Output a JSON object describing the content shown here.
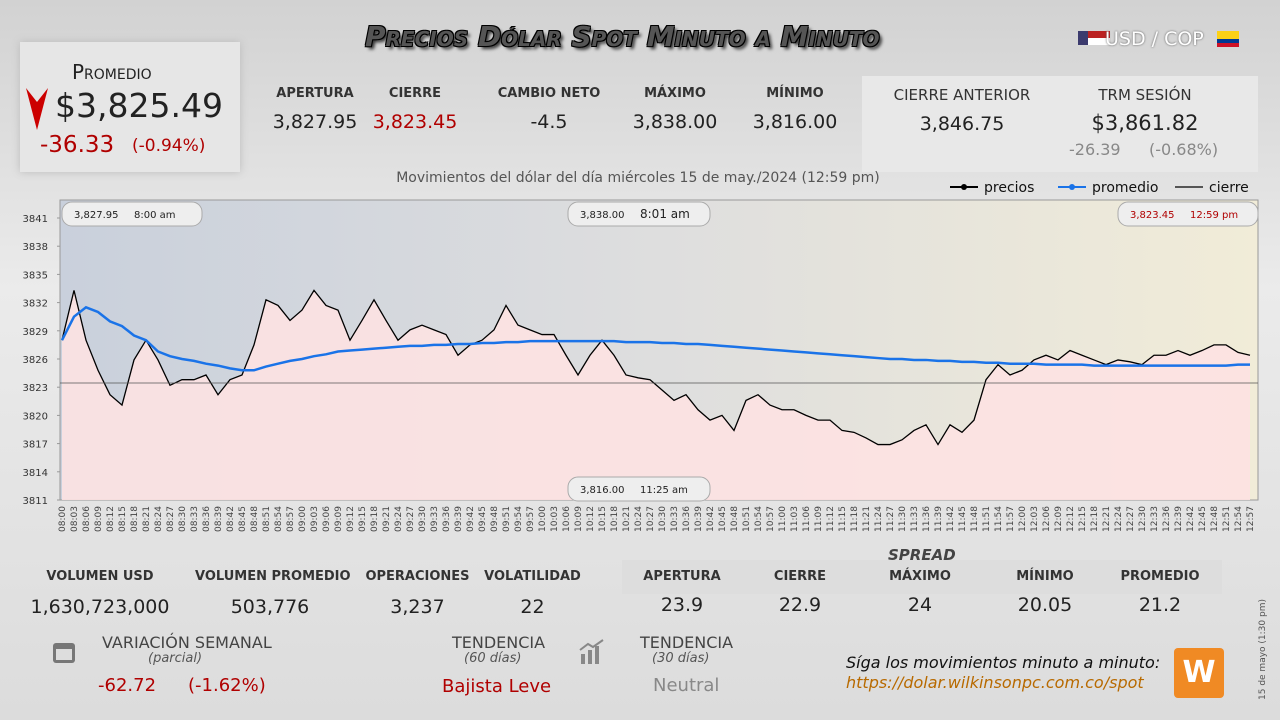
{
  "header": {
    "title": "Precios Dólar Spot Minuto a Minuto",
    "pair": "USD / COP"
  },
  "promedio": {
    "label": "Promedio",
    "value": "$3,825.49",
    "change": "-36.33",
    "change_pct": "(-0.94%)"
  },
  "stats": [
    {
      "label": "APERTURA",
      "value": "3,827.95"
    },
    {
      "label": "CIERRE",
      "value": "3,823.45"
    },
    {
      "label": "CAMBIO NETO",
      "value": "-4.5"
    },
    {
      "label": "MÁXIMO",
      "value": "3,838.00"
    },
    {
      "label": "MÍNIMO",
      "value": "3,816.00"
    }
  ],
  "previous": {
    "cierre_anterior": {
      "label": "CIERRE ANTERIOR",
      "value": "3,846.75"
    },
    "trm": {
      "label": "TRM SESIÓN",
      "value": "$3,861.82",
      "change": "-26.39",
      "change_pct": "(-0.68%)"
    }
  },
  "chart_data": {
    "type": "line",
    "subtitle": "Movimientos del dólar del día miércoles 15 de may./2024 (12:59 pm)",
    "categories": [
      "08:00",
      "08:03",
      "08:06",
      "08:09",
      "08:12",
      "08:15",
      "08:18",
      "08:21",
      "08:24",
      "08:27",
      "08:30",
      "08:33",
      "08:36",
      "08:39",
      "08:42",
      "08:45",
      "08:48",
      "08:51",
      "08:54",
      "08:57",
      "09:00",
      "09:03",
      "09:06",
      "09:09",
      "09:12",
      "09:15",
      "09:18",
      "09:21",
      "09:24",
      "09:27",
      "09:30",
      "09:33",
      "09:36",
      "09:39",
      "09:42",
      "09:45",
      "09:48",
      "09:51",
      "09:54",
      "09:57",
      "10:00",
      "10:03",
      "10:06",
      "10:09",
      "10:12",
      "10:15",
      "10:18",
      "10:21",
      "10:24",
      "10:27",
      "10:30",
      "10:33",
      "10:36",
      "10:39",
      "10:42",
      "10:45",
      "10:48",
      "10:51",
      "10:54",
      "10:57",
      "11:00",
      "11:03",
      "11:06",
      "11:09",
      "11:12",
      "11:15",
      "11:18",
      "11:21",
      "11:24",
      "11:27",
      "11:30",
      "11:33",
      "11:36",
      "11:39",
      "11:42",
      "11:45",
      "11:48",
      "11:51",
      "11:54",
      "11:57",
      "12:00",
      "12:03",
      "12:06",
      "12:09",
      "12:12",
      "12:15",
      "12:18",
      "12:21",
      "12:24",
      "12:27",
      "12:30",
      "12:33",
      "12:36",
      "12:39",
      "12:42",
      "12:45",
      "12:48",
      "12:51",
      "12:54",
      "12:57"
    ],
    "series": [
      {
        "name": "precios",
        "color": "#000000",
        "fill": "#fde2e2",
        "values": [
          3828,
          3833.3,
          3828,
          3824.8,
          3822.2,
          3821.1,
          3825.9,
          3828,
          3825.9,
          3823.2,
          3823.8,
          3823.8,
          3824.3,
          3822.2,
          3823.8,
          3824.3,
          3827.5,
          3832.3,
          3831.7,
          3830.1,
          3831.2,
          3833.3,
          3831.7,
          3831.2,
          3828,
          3830.1,
          3832.3,
          3830.1,
          3828,
          3829.1,
          3829.6,
          3829.1,
          3828.6,
          3826.4,
          3827.5,
          3828,
          3829.1,
          3831.7,
          3829.6,
          3829.1,
          3828.6,
          3828.6,
          3826.4,
          3824.3,
          3826.4,
          3828,
          3826.4,
          3824.3,
          3824,
          3823.8,
          3822.7,
          3821.6,
          3822.2,
          3820.6,
          3819.5,
          3820,
          3818.4,
          3821.6,
          3822.2,
          3821.1,
          3820.6,
          3820.6,
          3820,
          3819.5,
          3819.5,
          3818.4,
          3818.2,
          3817.6,
          3816.9,
          3816.9,
          3817.4,
          3818.4,
          3819,
          3816.9,
          3819,
          3818.2,
          3819.5,
          3823.8,
          3825.4,
          3824.3,
          3824.8,
          3825.9,
          3826.4,
          3825.9,
          3826.9,
          3826.4,
          3825.9,
          3825.4,
          3825.9,
          3825.7,
          3825.4,
          3826.4,
          3826.4,
          3826.9,
          3826.4,
          3826.9,
          3827.5,
          3827.5,
          3826.7,
          3826.4
        ]
      },
      {
        "name": "promedio",
        "color": "#1a73e8",
        "values": [
          3828,
          3830.5,
          3831.5,
          3831,
          3830,
          3829.5,
          3828.5,
          3828,
          3826.8,
          3826.3,
          3826,
          3825.8,
          3825.5,
          3825.3,
          3825,
          3824.8,
          3824.8,
          3825.2,
          3825.5,
          3825.8,
          3826,
          3826.3,
          3826.5,
          3826.8,
          3826.9,
          3827,
          3827.1,
          3827.2,
          3827.3,
          3827.4,
          3827.4,
          3827.5,
          3827.5,
          3827.6,
          3827.6,
          3827.7,
          3827.7,
          3827.8,
          3827.8,
          3827.9,
          3827.9,
          3827.9,
          3827.9,
          3827.9,
          3827.9,
          3827.9,
          3827.9,
          3827.8,
          3827.8,
          3827.8,
          3827.7,
          3827.7,
          3827.6,
          3827.6,
          3827.5,
          3827.4,
          3827.3,
          3827.2,
          3827.1,
          3827,
          3826.9,
          3826.8,
          3826.7,
          3826.6,
          3826.5,
          3826.4,
          3826.3,
          3826.2,
          3826.1,
          3826,
          3826,
          3825.9,
          3825.9,
          3825.8,
          3825.8,
          3825.7,
          3825.7,
          3825.6,
          3825.6,
          3825.5,
          3825.5,
          3825.5,
          3825.4,
          3825.4,
          3825.4,
          3825.4,
          3825.3,
          3825.3,
          3825.3,
          3825.3,
          3825.3,
          3825.3,
          3825.3,
          3825.3,
          3825.3,
          3825.3,
          3825.3,
          3825.3,
          3825.4,
          3825.4
        ]
      },
      {
        "name": "cierre",
        "color": "#555555",
        "value": 3823.45
      }
    ],
    "ylim": [
      3811,
      3841
    ],
    "yticks": [
      3811,
      3814,
      3817,
      3820,
      3823,
      3826,
      3829,
      3832,
      3835,
      3838,
      3841
    ],
    "grid": false,
    "annotations": [
      {
        "label": "3,827.95",
        "time": "8:00 am"
      },
      {
        "label": "3,838.00",
        "time": "8:01 am"
      },
      {
        "label": "3,823.45",
        "time": "12:59 pm"
      },
      {
        "label": "3,816.00",
        "time": "11:25 am"
      }
    ]
  },
  "volume": [
    {
      "label": "VOLUMEN USD",
      "value": "1,630,723,000"
    },
    {
      "label": "VOLUMEN PROMEDIO",
      "value": "503,776"
    },
    {
      "label": "OPERACIONES",
      "value": "3,237"
    },
    {
      "label": "VOLATILIDAD",
      "value": "22"
    }
  ],
  "spread": {
    "title": "SPREAD",
    "items": [
      {
        "label": "APERTURA",
        "value": "23.9"
      },
      {
        "label": "CIERRE",
        "value": "22.9"
      },
      {
        "label": "MÁXIMO",
        "value": "24"
      },
      {
        "label": "MÍNIMO",
        "value": "20.05"
      },
      {
        "label": "PROMEDIO",
        "value": "21.2"
      }
    ]
  },
  "weekly": {
    "label": "VARIACIÓN SEMANAL",
    "sub": "(parcial)",
    "change": "-62.72",
    "change_pct": "(-1.62%)"
  },
  "trend60": {
    "label": "TENDENCIA",
    "sub": "(60 días)",
    "value": "Bajista Leve"
  },
  "trend30": {
    "label": "TENDENCIA",
    "sub": "(30 días)",
    "value": "Neutral"
  },
  "follow": {
    "text": "Síga los movimientos minuto a minuto:",
    "url": "https://dolar.wilkinsonpc.com.co/spot"
  },
  "side_note": "15 de mayo (1:30 pm)"
}
